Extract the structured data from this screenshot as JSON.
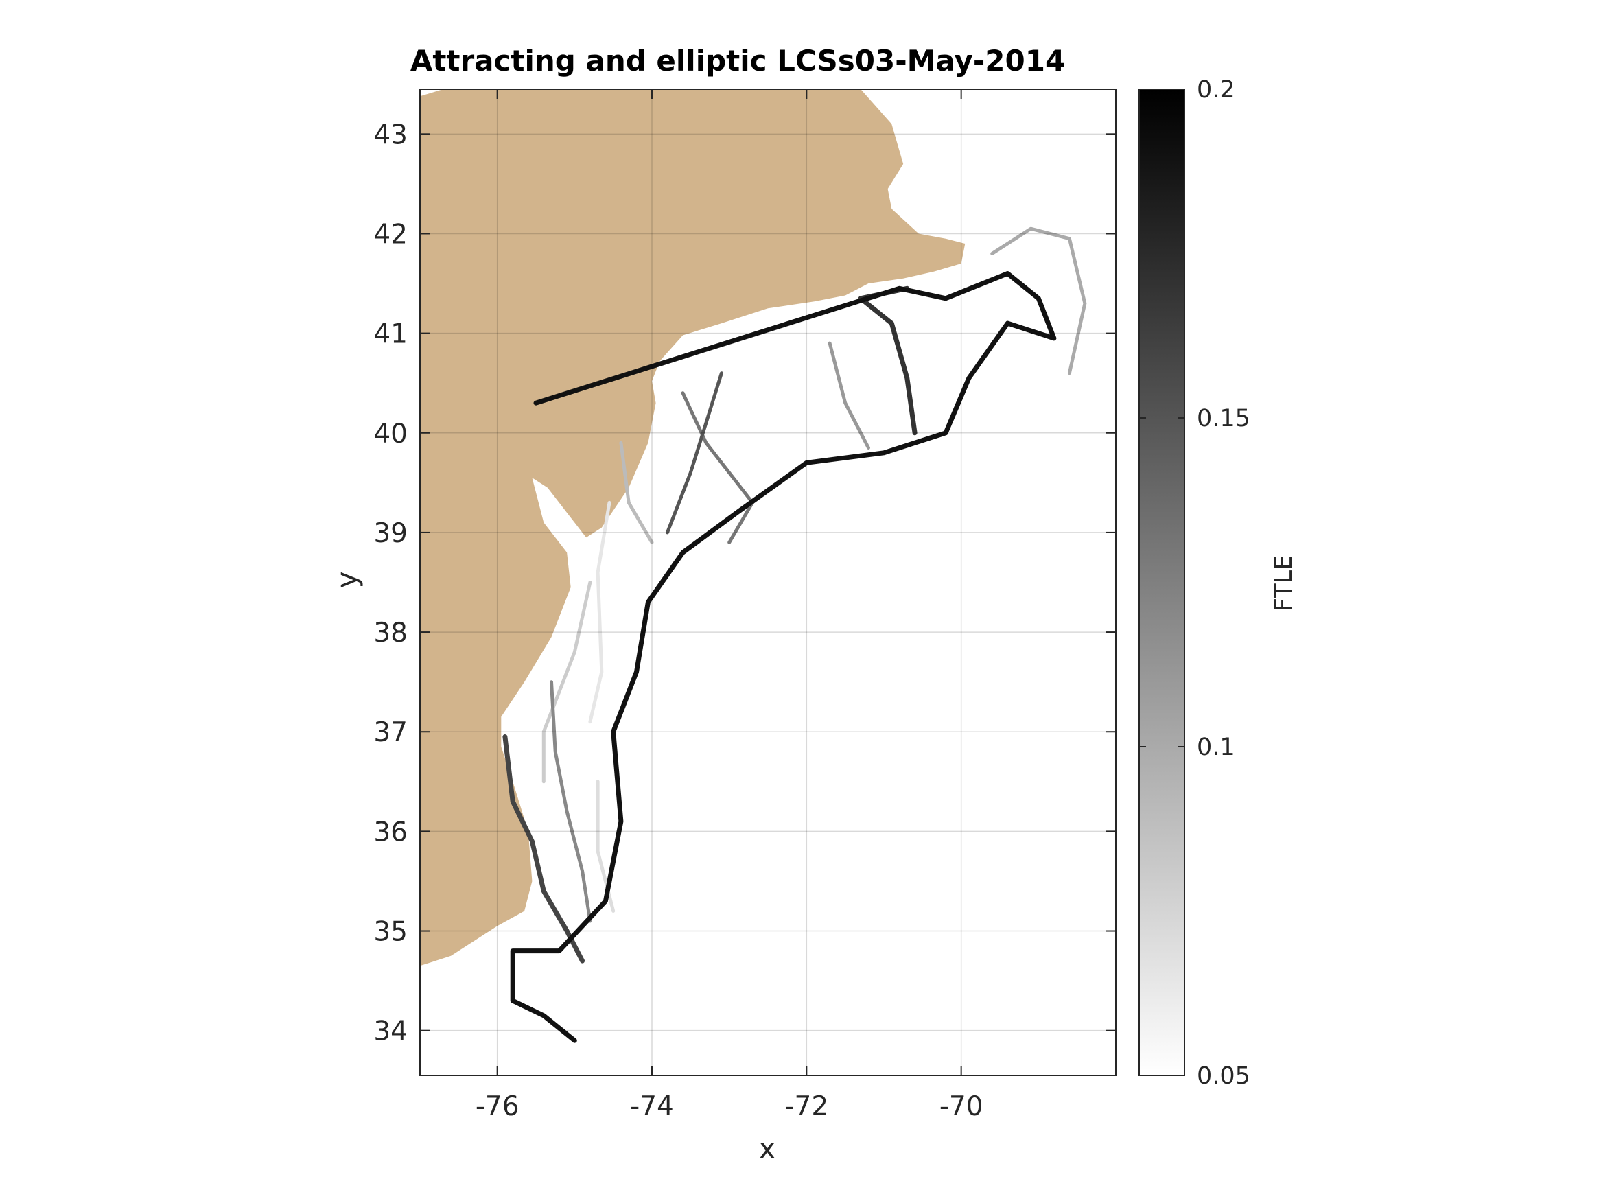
{
  "chart_data": {
    "type": "heatmap",
    "title": "Attracting and elliptic LCSs03-May-2014",
    "xlabel": "x",
    "ylabel": "y",
    "xlim": [
      -77.0,
      -68.0
    ],
    "ylim": [
      33.55,
      43.45
    ],
    "xticks": [
      -76,
      -74,
      -72,
      -70
    ],
    "yticks": [
      34,
      35,
      36,
      37,
      38,
      39,
      40,
      41,
      42,
      43
    ],
    "grid": true,
    "colormap": "gray (white to black)",
    "colorbar": {
      "label": "FTLE",
      "range": [
        0.05,
        0.2
      ],
      "ticks": [
        0.05,
        0.1,
        0.15,
        0.2
      ]
    },
    "land_color": "#d2b48c",
    "coastline": [
      [
        -77.0,
        43.38
      ],
      [
        -76.7,
        43.45
      ],
      [
        -71.3,
        43.45
      ],
      [
        -70.9,
        43.1
      ],
      [
        -70.75,
        42.7
      ],
      [
        -70.95,
        42.45
      ],
      [
        -70.9,
        42.25
      ],
      [
        -70.55,
        42.0
      ],
      [
        -70.2,
        41.95
      ],
      [
        -69.95,
        41.9
      ],
      [
        -70.0,
        41.7
      ],
      [
        -70.35,
        41.62
      ],
      [
        -70.75,
        41.55
      ],
      [
        -71.2,
        41.5
      ],
      [
        -71.5,
        41.38
      ],
      [
        -71.9,
        41.32
      ],
      [
        -72.5,
        41.25
      ],
      [
        -73.1,
        41.1
      ],
      [
        -73.6,
        40.98
      ],
      [
        -73.9,
        40.72
      ],
      [
        -74.0,
        40.52
      ],
      [
        -73.95,
        40.3
      ],
      [
        -74.05,
        39.9
      ],
      [
        -74.3,
        39.45
      ],
      [
        -74.65,
        39.05
      ],
      [
        -74.85,
        38.95
      ],
      [
        -75.05,
        39.15
      ],
      [
        -75.35,
        39.45
      ],
      [
        -75.55,
        39.55
      ],
      [
        -75.4,
        39.1
      ],
      [
        -75.1,
        38.8
      ],
      [
        -75.05,
        38.45
      ],
      [
        -75.3,
        37.95
      ],
      [
        -75.65,
        37.5
      ],
      [
        -75.95,
        37.15
      ],
      [
        -75.95,
        36.85
      ],
      [
        -75.8,
        36.5
      ],
      [
        -75.6,
        36.0
      ],
      [
        -75.55,
        35.5
      ],
      [
        -75.65,
        35.2
      ],
      [
        -76.0,
        35.05
      ],
      [
        -76.6,
        34.75
      ],
      [
        -77.0,
        34.65
      ]
    ],
    "ridges": [
      {
        "ftle": 0.19,
        "points": [
          [
            -75.5,
            40.3
          ],
          [
            -70.8,
            41.45
          ],
          [
            -70.2,
            41.35
          ],
          [
            -69.4,
            41.6
          ],
          [
            -69.0,
            41.35
          ],
          [
            -68.8,
            40.95
          ],
          [
            -69.4,
            41.1
          ],
          [
            -69.9,
            40.55
          ],
          [
            -70.2,
            40.0
          ],
          [
            -71.0,
            39.8
          ],
          [
            -72.0,
            39.7
          ],
          [
            -72.9,
            39.2
          ],
          [
            -73.6,
            38.8
          ],
          [
            -74.05,
            38.3
          ],
          [
            -74.2,
            37.6
          ],
          [
            -74.5,
            37.0
          ],
          [
            -74.4,
            36.1
          ],
          [
            -74.6,
            35.3
          ],
          [
            -75.2,
            34.8
          ],
          [
            -75.8,
            34.8
          ],
          [
            -75.8,
            34.3
          ],
          [
            -75.4,
            34.15
          ],
          [
            -75.0,
            33.9
          ]
        ]
      },
      {
        "ftle": 0.17,
        "points": [
          [
            -70.6,
            40.0
          ],
          [
            -70.7,
            40.55
          ],
          [
            -70.9,
            41.1
          ],
          [
            -71.3,
            41.35
          ],
          [
            -70.7,
            41.45
          ]
        ]
      },
      {
        "ftle": 0.16,
        "points": [
          [
            -75.9,
            36.95
          ],
          [
            -75.8,
            36.3
          ],
          [
            -75.55,
            35.9
          ],
          [
            -75.4,
            35.4
          ],
          [
            -75.1,
            35.0
          ],
          [
            -74.9,
            34.7
          ]
        ]
      },
      {
        "ftle": 0.15,
        "points": [
          [
            -73.1,
            40.6
          ],
          [
            -73.3,
            40.1
          ],
          [
            -73.5,
            39.6
          ],
          [
            -73.8,
            39.0
          ]
        ]
      },
      {
        "ftle": 0.13,
        "points": [
          [
            -73.6,
            40.4
          ],
          [
            -73.3,
            39.9
          ],
          [
            -72.7,
            39.3
          ],
          [
            -73.0,
            38.9
          ]
        ]
      },
      {
        "ftle": 0.12,
        "points": [
          [
            -75.3,
            37.5
          ],
          [
            -75.25,
            36.8
          ],
          [
            -75.1,
            36.2
          ],
          [
            -74.9,
            35.6
          ],
          [
            -74.8,
            35.1
          ]
        ]
      },
      {
        "ftle": 0.11,
        "points": [
          [
            -71.7,
            40.9
          ],
          [
            -71.5,
            40.3
          ],
          [
            -71.2,
            39.85
          ]
        ]
      },
      {
        "ftle": 0.1,
        "points": [
          [
            -69.6,
            41.8
          ],
          [
            -69.1,
            42.05
          ],
          [
            -68.6,
            41.95
          ],
          [
            -68.4,
            41.3
          ],
          [
            -68.6,
            40.6
          ]
        ]
      },
      {
        "ftle": 0.09,
        "points": [
          [
            -74.4,
            39.9
          ],
          [
            -74.3,
            39.3
          ],
          [
            -74.0,
            38.9
          ]
        ]
      },
      {
        "ftle": 0.08,
        "points": [
          [
            -74.8,
            38.5
          ],
          [
            -75.0,
            37.8
          ],
          [
            -75.4,
            37.0
          ],
          [
            -75.4,
            36.5
          ]
        ]
      },
      {
        "ftle": 0.07,
        "points": [
          [
            -74.7,
            36.5
          ],
          [
            -74.7,
            35.8
          ],
          [
            -74.5,
            35.2
          ]
        ]
      },
      {
        "ftle": 0.065,
        "points": [
          [
            -74.55,
            39.3
          ],
          [
            -74.7,
            38.6
          ],
          [
            -74.65,
            37.6
          ],
          [
            -74.8,
            37.1
          ]
        ]
      }
    ]
  }
}
